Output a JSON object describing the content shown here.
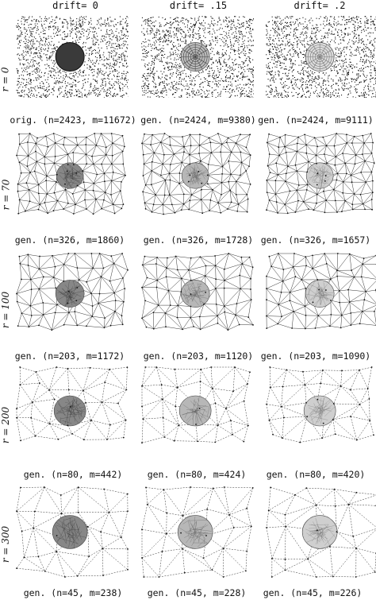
{
  "columns": [
    "drift= 0",
    "drift= .15",
    "drift= .2"
  ],
  "rows": [
    {
      "label": "r = 0",
      "captions": [
        "orig. (n=2423, m=11672)",
        "gen. (n=2424, m=9380)",
        "gen. (n=2424, m=9111)"
      ]
    },
    {
      "label": "r = 70",
      "captions": [
        "gen. (n=326, m=1860)",
        "gen. (n=326, m=1728)",
        "gen. (n=326, m=1657)"
      ]
    },
    {
      "label": "r = 100",
      "captions": [
        "gen. (n=203, m=1172)",
        "gen. (n=203, m=1120)",
        "gen. (n=203, m=1090)"
      ]
    },
    {
      "label": "r = 200",
      "captions": [
        "gen. (n=80, m=442)",
        "gen. (n=80, m=424)",
        "gen. (n=80, m=420)"
      ]
    },
    {
      "label": "r = 300",
      "captions": [
        "gen. (n=45, m=238)",
        "gen. (n=45, m=228)",
        "gen. (n=45, m=226)"
      ]
    }
  ]
}
